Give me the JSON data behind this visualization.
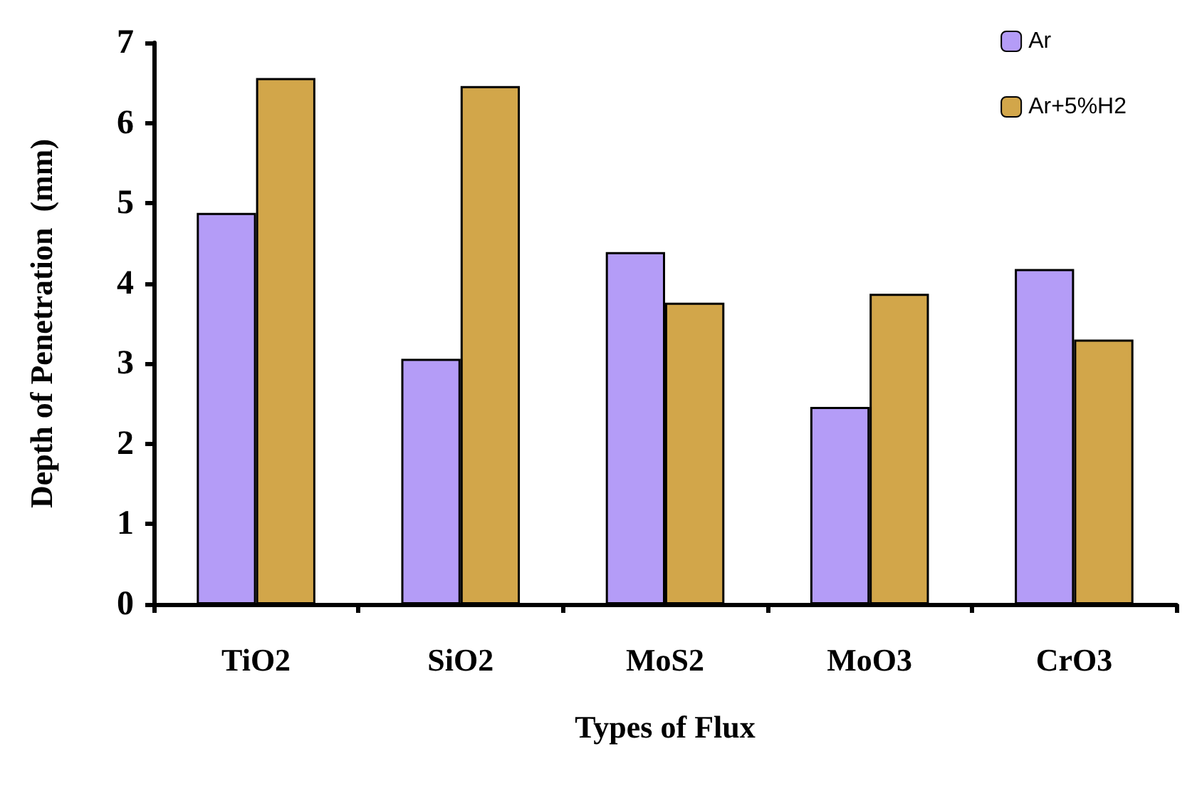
{
  "chart_data": {
    "type": "bar",
    "xlabel": "Types of Flux",
    "ylabel": "Depth of Penetration  (mm)",
    "categories": [
      "TiO2",
      "SiO2",
      "MoS2",
      "MoO3",
      "CrO3"
    ],
    "series": [
      {
        "name": "Ar",
        "color": "#b49cf7",
        "values": [
          4.88,
          3.06,
          4.39,
          2.46,
          4.18
        ]
      },
      {
        "name": "Ar+5%H2",
        "color": "#d2a64a",
        "values": [
          6.56,
          6.46,
          3.76,
          3.87,
          3.3
        ]
      }
    ],
    "ylim": [
      0,
      7
    ],
    "yticks": [
      0,
      1,
      2,
      3,
      4,
      5,
      6,
      7
    ],
    "grid": false,
    "legend": "top right"
  }
}
